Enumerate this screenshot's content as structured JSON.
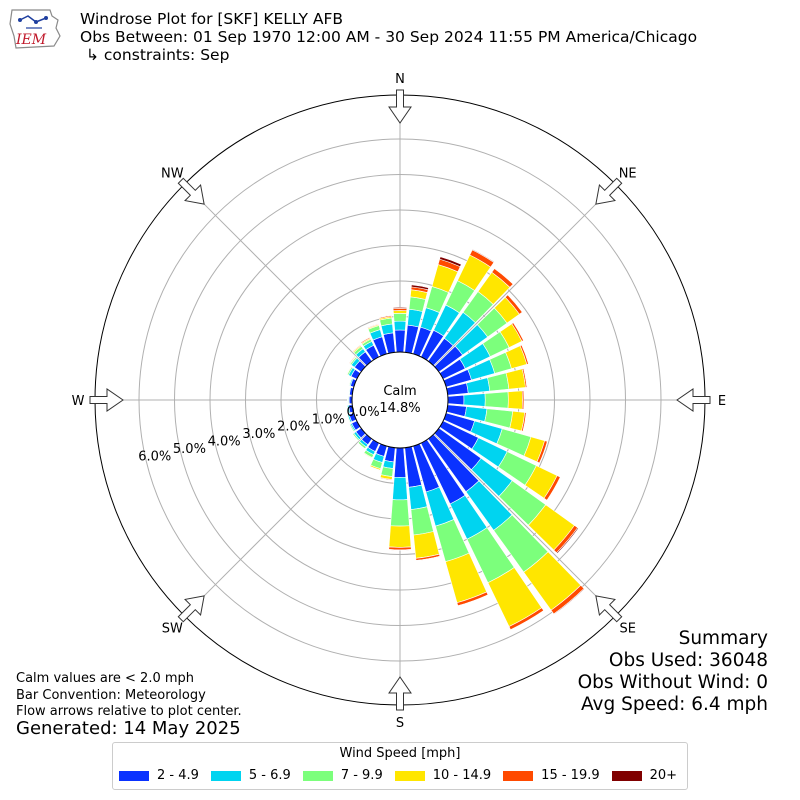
{
  "header": {
    "logo_text": "IEM",
    "title": "Windrose Plot for [SKF] KELLY AFB",
    "obs_between": "Obs Between: 01 Sep 1970 12:00 AM - 30 Sep 2024 11:55 PM America/Chicago",
    "constraints": "↳ constraints: Sep"
  },
  "notes": {
    "calm_note": "Calm values are < 2.0 mph",
    "bar_convention": "Bar Convention: Meteorology",
    "flow_arrows": "Flow arrows relative to plot center.",
    "generated": "Generated: 14 May 2025"
  },
  "summary": {
    "heading": "Summary",
    "obs_used": "Obs Used: 36048",
    "obs_without_wind": "Obs Without Wind: 0",
    "avg_speed": "Avg Speed: 6.4 mph"
  },
  "legend": {
    "title": "Wind Speed [mph]",
    "items": [
      {
        "label": "2 - 4.9",
        "color": "#0a32ff"
      },
      {
        "label": "5 - 6.9",
        "color": "#00d4f0"
      },
      {
        "label": "7 - 9.9",
        "color": "#7cff7c"
      },
      {
        "label": "10 - 14.9",
        "color": "#ffe600"
      },
      {
        "label": "15 - 19.9",
        "color": "#ff4a00"
      },
      {
        "label": "20+",
        "color": "#800000"
      }
    ]
  },
  "chart_data": {
    "type": "windrose",
    "calm_label": "Calm",
    "calm_value": "14.8%",
    "radial_ticks": [
      0,
      1,
      2,
      3,
      4,
      5,
      6
    ],
    "radial_tick_labels": [
      "0.0%",
      "1.0%",
      "2.0%",
      "3.0%",
      "4.0%",
      "5.0%",
      "6.0%"
    ],
    "compass_labels": [
      "N",
      "NE",
      "E",
      "SE",
      "S",
      "SW",
      "W",
      "NW"
    ],
    "directions_deg": [
      0,
      10,
      20,
      30,
      40,
      50,
      60,
      70,
      80,
      90,
      100,
      110,
      120,
      130,
      140,
      150,
      160,
      170,
      180,
      190,
      200,
      210,
      220,
      230,
      240,
      250,
      260,
      270,
      280,
      290,
      300,
      310,
      320,
      330,
      340,
      350
    ],
    "series": [
      {
        "name": "2 - 4.9",
        "values": [
          0.62,
          0.77,
          0.78,
          0.83,
          0.79,
          0.82,
          0.69,
          0.74,
          0.58,
          0.45,
          0.53,
          0.83,
          1.1,
          1.46,
          1.83,
          1.9,
          1.34,
          1.12,
          0.83,
          0.4,
          0.3,
          0.26,
          0.2,
          0.18,
          0.16,
          0.14,
          0.1,
          0.08,
          0.08,
          0.1,
          0.18,
          0.23,
          0.32,
          0.36,
          0.5,
          0.55
        ]
      },
      {
        "name": "5 - 6.9",
        "values": [
          0.25,
          0.45,
          0.57,
          0.79,
          0.9,
          0.87,
          0.78,
          0.68,
          0.61,
          0.6,
          0.58,
          0.81,
          0.9,
          1.08,
          1.34,
          1.1,
          1.0,
          0.63,
          0.63,
          0.19,
          0.18,
          0.1,
          0.08,
          0.07,
          0.04,
          0.04,
          0.04,
          0.02,
          0.02,
          0.03,
          0.08,
          0.11,
          0.11,
          0.12,
          0.21,
          0.25
        ]
      },
      {
        "name": "7 - 9.9",
        "values": [
          0.22,
          0.35,
          0.62,
          0.76,
          0.72,
          0.67,
          0.59,
          0.49,
          0.54,
          0.65,
          0.73,
          0.84,
          0.91,
          1.16,
          1.45,
          1.36,
          1.04,
          0.72,
          0.74,
          0.23,
          0.18,
          0.09,
          0.06,
          0.04,
          0.03,
          0.02,
          0.02,
          0.02,
          0.01,
          0.02,
          0.04,
          0.04,
          0.08,
          0.07,
          0.12,
          0.17
        ]
      },
      {
        "name": "10 - 14.9",
        "values": [
          0.08,
          0.2,
          0.64,
          0.8,
          0.67,
          0.43,
          0.4,
          0.45,
          0.47,
          0.4,
          0.34,
          0.4,
          0.65,
          1.0,
          1.32,
          1.37,
          1.2,
          0.66,
          0.6,
          0.08,
          0.04,
          0.02,
          0.01,
          0.01,
          0.01,
          0.01,
          0.01,
          0.01,
          0.0,
          0.01,
          0.02,
          0.02,
          0.03,
          0.03,
          0.03,
          0.04
        ]
      },
      {
        "name": "15 - 19.9",
        "values": [
          0.06,
          0.08,
          0.16,
          0.16,
          0.13,
          0.1,
          0.05,
          0.05,
          0.04,
          0.04,
          0.04,
          0.08,
          0.1,
          0.11,
          0.13,
          0.1,
          0.09,
          0.06,
          0.07,
          0.02,
          0.01,
          0.01,
          0.01,
          0.0,
          0.0,
          0.0,
          0.0,
          0.0,
          0.0,
          0.0,
          0.01,
          0.02,
          0.02,
          0.03,
          0.02,
          0.03
        ]
      },
      {
        "name": "20+",
        "values": [
          0.03,
          0.06,
          0.07,
          0.02,
          0.01,
          0.01,
          0.0,
          0.01,
          0.01,
          0.0,
          0.0,
          0.01,
          0.01,
          0.03,
          0.02,
          0.01,
          0.01,
          0.01,
          0.01,
          0.0,
          0.0,
          0.0,
          0.0,
          0.0,
          0.0,
          0.0,
          0.0,
          0.0,
          0.0,
          0.0,
          0.0,
          0.0,
          0.0,
          0.01,
          0.01,
          0.01
        ]
      }
    ]
  }
}
